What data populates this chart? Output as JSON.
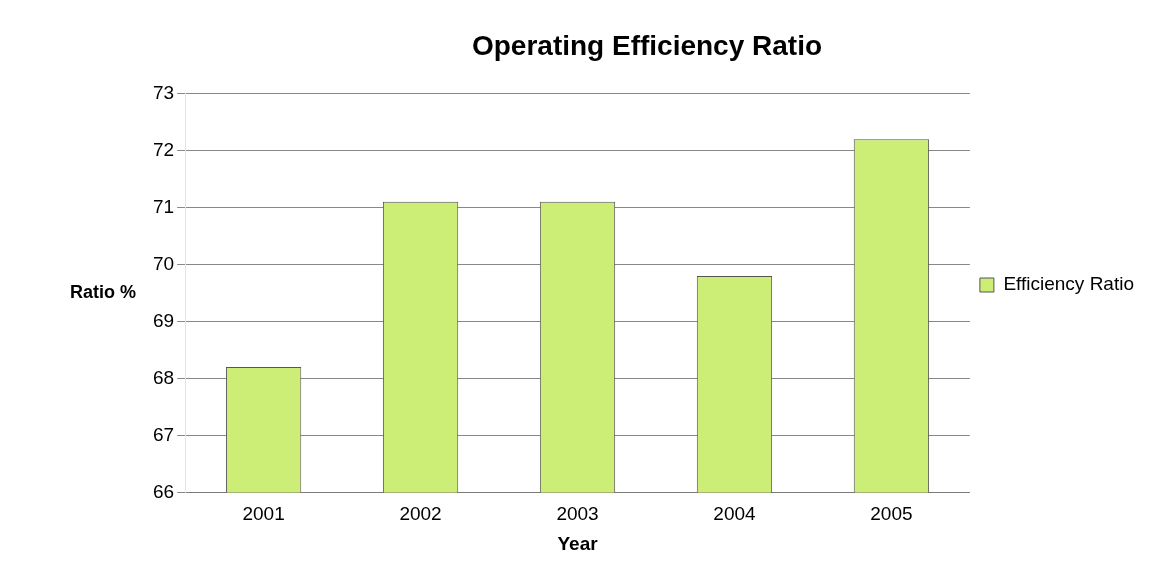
{
  "chart_data": {
    "type": "bar",
    "title": "Operating Efficiency Ratio",
    "xlabel": "Year",
    "ylabel": "Ratio %",
    "categories": [
      "2001",
      "2002",
      "2003",
      "2004",
      "2005"
    ],
    "series": [
      {
        "name": "Efficiency Ratio",
        "color": "#ccee77",
        "values": [
          68.2,
          71.1,
          71.1,
          69.8,
          72.2
        ]
      }
    ],
    "ylim": [
      66,
      73
    ],
    "yticks": [
      66,
      67,
      68,
      69,
      70,
      71,
      72,
      73
    ],
    "grid": "y",
    "legend": "right"
  }
}
